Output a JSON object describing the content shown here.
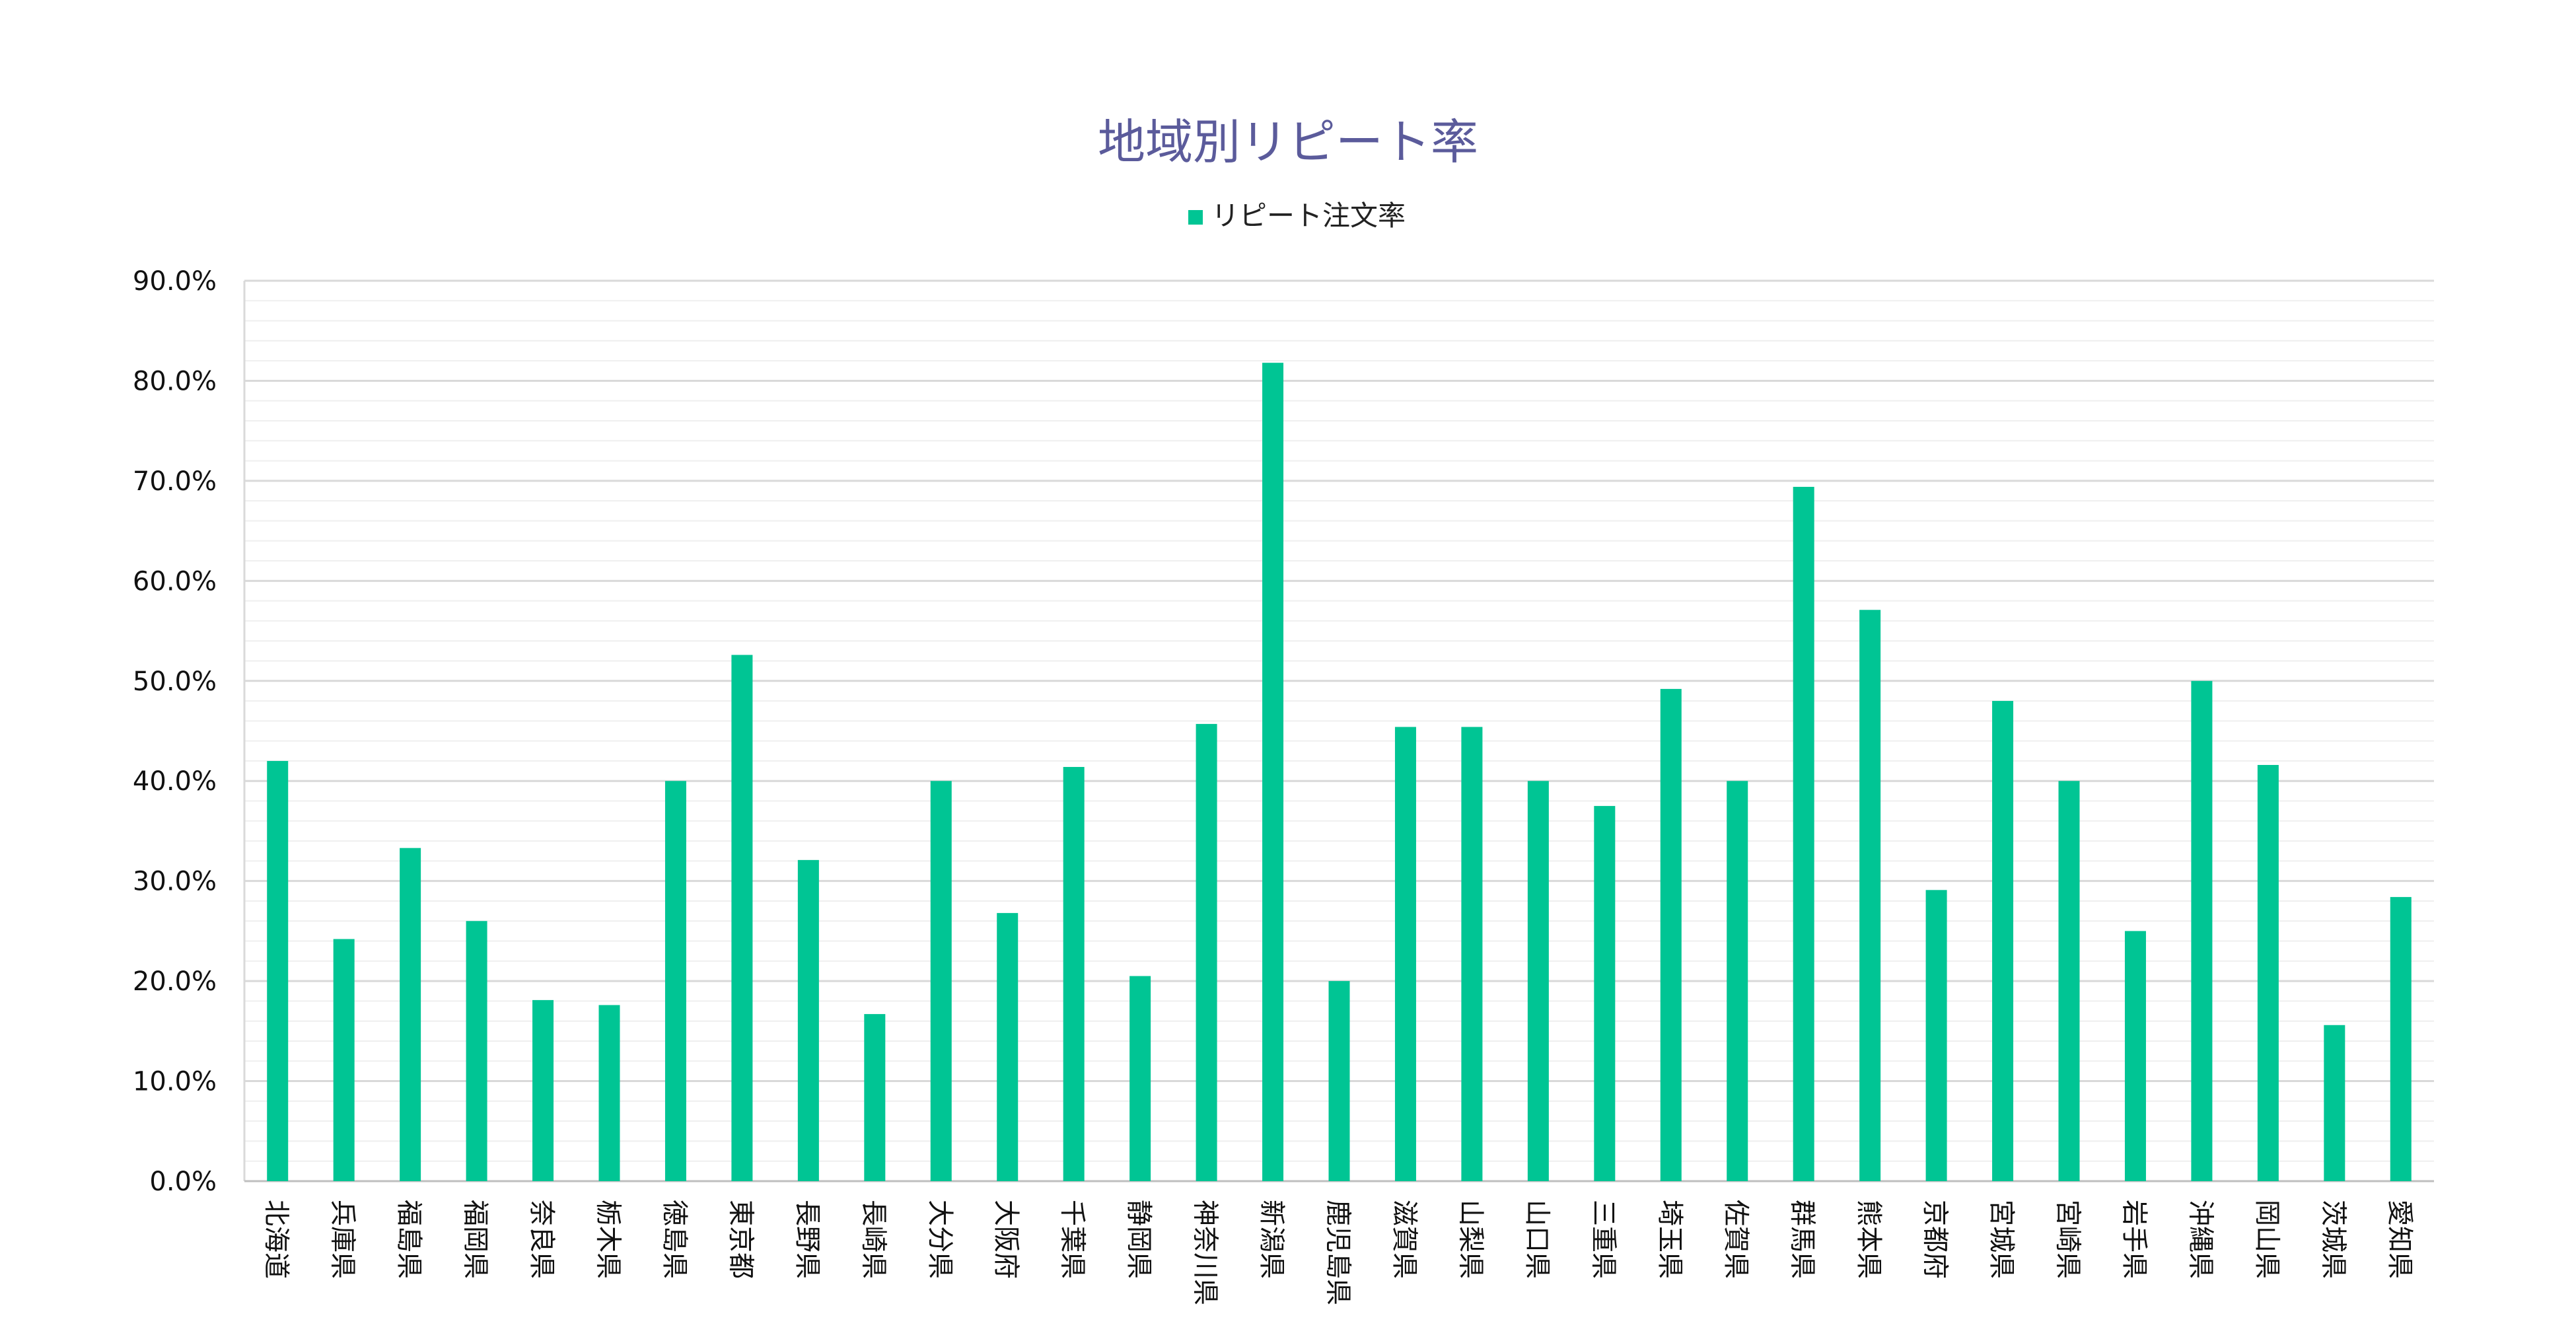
{
  "chart_data": {
    "type": "bar",
    "title": "地域別リピート率",
    "legend": {
      "position": "top-center"
    },
    "series": [
      {
        "name": "リピート注文率",
        "color": "#00c594",
        "values": [
          42.0,
          24.2,
          33.3,
          26.0,
          18.1,
          17.6,
          40.0,
          52.6,
          32.1,
          16.7,
          40.0,
          26.8,
          41.4,
          20.5,
          45.7,
          81.8,
          20.0,
          45.4,
          45.4,
          40.0,
          37.5,
          49.2,
          40.0,
          69.4,
          57.1,
          29.1,
          48.0,
          40.0,
          25.0,
          50.0,
          41.6,
          15.6,
          28.4
        ]
      }
    ],
    "categories": [
      "北海道",
      "兵庫県",
      "福島県",
      "福岡県",
      "奈良県",
      "栃木県",
      "徳島県",
      "東京都",
      "長野県",
      "長崎県",
      "大分県",
      "大阪府",
      "千葉県",
      "静岡県",
      "神奈川県",
      "新潟県",
      "鹿児島県",
      "滋賀県",
      "山梨県",
      "山口県",
      "三重県",
      "埼玉県",
      "佐賀県",
      "群馬県",
      "熊本県",
      "京都府",
      "宮城県",
      "宮崎県",
      "岩手県",
      "沖縄県",
      "岡山県",
      "茨城県",
      "愛知県"
    ],
    "y_axis": {
      "min": 0,
      "max": 90,
      "major_step": 10,
      "minor_step": 2,
      "ticks": [
        "0.0%",
        "10.0%",
        "20.0%",
        "30.0%",
        "40.0%",
        "50.0%",
        "60.0%",
        "70.0%",
        "80.0%",
        "90.0%"
      ]
    },
    "grid": {
      "major": true,
      "minor": true,
      "major_color": "#d9d9d9",
      "minor_color": "#efefef"
    },
    "xlabel": "",
    "ylabel": ""
  }
}
